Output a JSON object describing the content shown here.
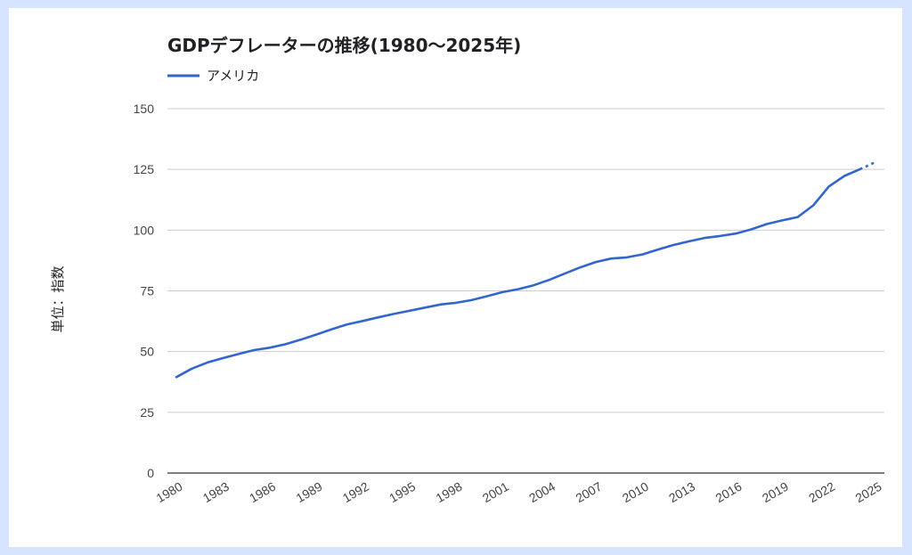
{
  "chart_data": {
    "type": "line",
    "title": "GDPデフレーターの推移(1980～2025年)",
    "ylabel": "単位：指数",
    "xlabel": "",
    "ylim": [
      0,
      150
    ],
    "yticks": [
      0,
      25,
      50,
      75,
      100,
      125,
      150
    ],
    "xtick_labels": [
      "1980",
      "1983",
      "1986",
      "1989",
      "1992",
      "1995",
      "1998",
      "2001",
      "2004",
      "2007",
      "2010",
      "2013",
      "2016",
      "2019",
      "2022",
      "2025"
    ],
    "grid": true,
    "legend": "top-left",
    "x": [
      1980,
      1981,
      1982,
      1983,
      1984,
      1985,
      1986,
      1987,
      1988,
      1989,
      1990,
      1991,
      1992,
      1993,
      1994,
      1995,
      1996,
      1997,
      1998,
      1999,
      2000,
      2001,
      2002,
      2003,
      2004,
      2005,
      2006,
      2007,
      2008,
      2009,
      2010,
      2011,
      2012,
      2013,
      2014,
      2015,
      2016,
      2017,
      2018,
      2019,
      2020,
      2021,
      2022,
      2023,
      2024,
      2025
    ],
    "series": [
      {
        "name": "アメリカ",
        "color": "#3366cc",
        "values": [
          39.5,
          43.0,
          45.5,
          47.3,
          49.0,
          50.6,
          51.6,
          53.0,
          54.9,
          57.0,
          59.2,
          61.2,
          62.6,
          64.1,
          65.5,
          66.8,
          68.1,
          69.4,
          70.1,
          71.2,
          72.8,
          74.5,
          75.7,
          77.3,
          79.5,
          82.1,
          84.7,
          86.9,
          88.3,
          88.8,
          90.0,
          92.0,
          93.9,
          95.4,
          96.8,
          97.6,
          98.6,
          100.3,
          102.5,
          104.0,
          105.4,
          110.2,
          118.0,
          122.3,
          125.1,
          128.0
        ],
        "forecast_from": 2024
      }
    ]
  }
}
